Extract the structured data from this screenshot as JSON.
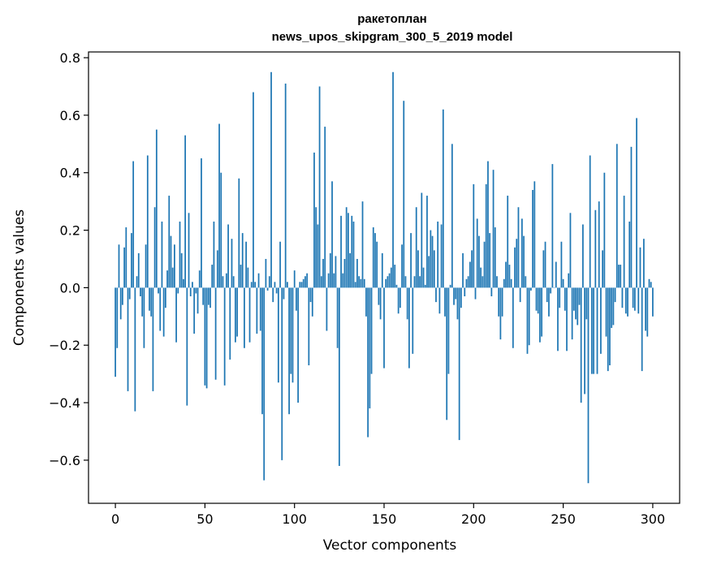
{
  "chart_data": {
    "type": "bar",
    "title": "ракетоплан",
    "subtitle": "news_upos_skipgram_300_5_2019 model",
    "xlabel": "Vector components",
    "ylabel": "Components values",
    "xlim": [
      -15,
      315
    ],
    "ylim": [
      -0.75,
      0.82
    ],
    "xticks": [
      0,
      50,
      100,
      150,
      200,
      250,
      300
    ],
    "yticks": [
      -0.6,
      -0.4,
      -0.2,
      0.0,
      0.2,
      0.4,
      0.6,
      0.8
    ],
    "grid": false,
    "bar_color": "#1f77b4",
    "values": [
      -0.31,
      -0.21,
      0.15,
      -0.11,
      -0.06,
      0.14,
      0.21,
      -0.36,
      -0.04,
      0.19,
      0.44,
      -0.43,
      0.04,
      0.12,
      -0.03,
      -0.1,
      -0.21,
      0.15,
      0.46,
      -0.08,
      -0.1,
      -0.36,
      0.28,
      0.55,
      -0.02,
      -0.15,
      0.23,
      -0.17,
      -0.07,
      0.06,
      0.32,
      0.18,
      0.07,
      0.15,
      -0.19,
      -0.02,
      0.23,
      0.12,
      0.03,
      0.53,
      -0.41,
      0.26,
      -0.03,
      0.02,
      -0.16,
      -0.02,
      -0.09,
      0.06,
      0.45,
      -0.06,
      -0.34,
      -0.35,
      -0.06,
      -0.07,
      0.08,
      0.23,
      -0.32,
      0.13,
      0.57,
      0.4,
      0.04,
      -0.34,
      0.05,
      0.22,
      -0.25,
      0.17,
      0.04,
      -0.19,
      -0.17,
      0.38,
      0.08,
      0.19,
      -0.21,
      0.16,
      0.07,
      -0.19,
      0.02,
      0.68,
      0.02,
      -0.16,
      0.05,
      -0.15,
      -0.44,
      -0.67,
      0.1,
      -0.01,
      0.04,
      0.75,
      -0.05,
      0.02,
      -0.02,
      -0.33,
      0.16,
      -0.6,
      -0.04,
      0.71,
      0.02,
      -0.44,
      -0.3,
      -0.33,
      0.06,
      -0.08,
      -0.4,
      0.02,
      0.02,
      0.03,
      0.04,
      0.05,
      -0.27,
      -0.05,
      -0.1,
      0.47,
      0.28,
      0.22,
      0.7,
      0.04,
      0.1,
      0.56,
      -0.15,
      0.05,
      0.12,
      0.37,
      0.05,
      0.11,
      -0.21,
      -0.62,
      0.25,
      0.05,
      0.1,
      0.28,
      0.26,
      0.12,
      0.25,
      0.23,
      0.02,
      0.1,
      0.04,
      0.03,
      0.3,
      0.03,
      -0.1,
      -0.52,
      -0.42,
      -0.3,
      0.21,
      0.19,
      0.16,
      -0.06,
      -0.11,
      0.12,
      -0.28,
      0.03,
      0.04,
      0.05,
      0.07,
      0.75,
      0.08,
      0.01,
      -0.09,
      -0.07,
      0.15,
      0.65,
      0.04,
      -0.11,
      -0.28,
      0.19,
      -0.23,
      0.04,
      0.28,
      0.13,
      0.04,
      0.33,
      0.07,
      0.01,
      0.32,
      0.11,
      0.2,
      0.18,
      0.13,
      -0.05,
      0.23,
      -0.09,
      0.22,
      0.62,
      -0.1,
      -0.46,
      -0.3,
      0.01,
      0.5,
      -0.06,
      -0.04,
      -0.11,
      -0.53,
      -0.07,
      0.12,
      -0.03,
      0.03,
      0.04,
      0.09,
      0.13,
      0.36,
      -0.04,
      0.24,
      0.18,
      0.07,
      0.04,
      0.16,
      0.36,
      0.44,
      0.19,
      -0.03,
      0.41,
      0.21,
      0.04,
      -0.1,
      -0.18,
      -0.1,
      0.03,
      0.09,
      0.32,
      0.08,
      0.03,
      -0.21,
      0.14,
      0.17,
      0.28,
      -0.05,
      0.24,
      0.18,
      0.04,
      -0.23,
      -0.2,
      -0.01,
      0.34,
      0.37,
      -0.08,
      -0.09,
      -0.19,
      -0.17,
      0.13,
      0.16,
      -0.05,
      -0.1,
      -0.02,
      0.43,
      0.0,
      0.09,
      -0.22,
      -0.07,
      0.16,
      0.03,
      -0.08,
      -0.22,
      0.05,
      0.26,
      -0.18,
      -0.08,
      -0.11,
      -0.13,
      -0.06,
      -0.4,
      0.22,
      -0.37,
      -0.11,
      -0.68,
      0.46,
      -0.3,
      -0.3,
      0.27,
      -0.3,
      0.3,
      -0.23,
      0.13,
      0.4,
      -0.17,
      -0.29,
      -0.27,
      -0.14,
      -0.13,
      -0.05,
      0.5,
      0.08,
      0.08,
      -0.07,
      0.32,
      -0.09,
      -0.1,
      0.23,
      0.49,
      -0.07,
      -0.08,
      0.59,
      -0.09,
      0.14,
      -0.29,
      0.17,
      -0.15,
      -0.17,
      0.03,
      0.02,
      -0.1
    ]
  }
}
